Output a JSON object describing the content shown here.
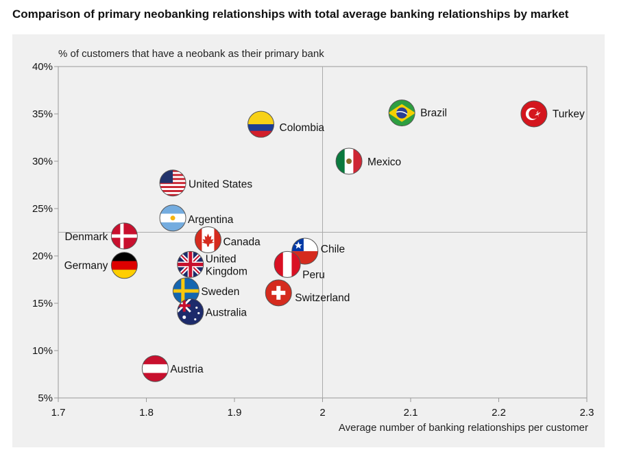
{
  "title": "Comparison of primary neobanking relationships with total average banking  relationships by market",
  "chart_data": {
    "type": "scatter",
    "title": "Comparison of primary neobanking relationships with total average banking  relationships by market",
    "xlabel": "Average number of banking relationships per customer",
    "ylabel": "% of customers that have a neobank as their primary bank",
    "xlim": [
      1.7,
      2.3
    ],
    "ylim": [
      5,
      40
    ],
    "x_ticks": [
      "1.7",
      "1.8",
      "1.9",
      "2",
      "2.1",
      "2.2",
      "2.3"
    ],
    "y_ticks": [
      "5%",
      "10%",
      "15%",
      "20%",
      "25%",
      "30%",
      "35%",
      "40%"
    ],
    "reference_lines": {
      "x": 2.0,
      "y": 22.5
    },
    "grid": false,
    "points": [
      {
        "name": "Brazil",
        "x": 2.09,
        "y": 35.1
      },
      {
        "name": "Turkey",
        "x": 2.24,
        "y": 35.0
      },
      {
        "name": "Colombia",
        "x": 1.93,
        "y": 33.9
      },
      {
        "name": "Mexico",
        "x": 2.03,
        "y": 30.0
      },
      {
        "name": "United States",
        "x": 1.83,
        "y": 27.7
      },
      {
        "name": "Argentina",
        "x": 1.83,
        "y": 24.0
      },
      {
        "name": "Denmark",
        "x": 1.775,
        "y": 22.1
      },
      {
        "name": "Canada",
        "x": 1.87,
        "y": 21.7
      },
      {
        "name": "Chile",
        "x": 1.98,
        "y": 20.5
      },
      {
        "name": "Germany",
        "x": 1.775,
        "y": 19.0
      },
      {
        "name": "United Kingdom",
        "x": 1.85,
        "y": 19.1
      },
      {
        "name": "Peru",
        "x": 1.96,
        "y": 19.1
      },
      {
        "name": "Sweden",
        "x": 1.845,
        "y": 16.3
      },
      {
        "name": "Switzerland",
        "x": 1.95,
        "y": 16.1
      },
      {
        "name": "Australia",
        "x": 1.85,
        "y": 14.1
      },
      {
        "name": "Austria",
        "x": 1.81,
        "y": 8.1
      }
    ]
  }
}
